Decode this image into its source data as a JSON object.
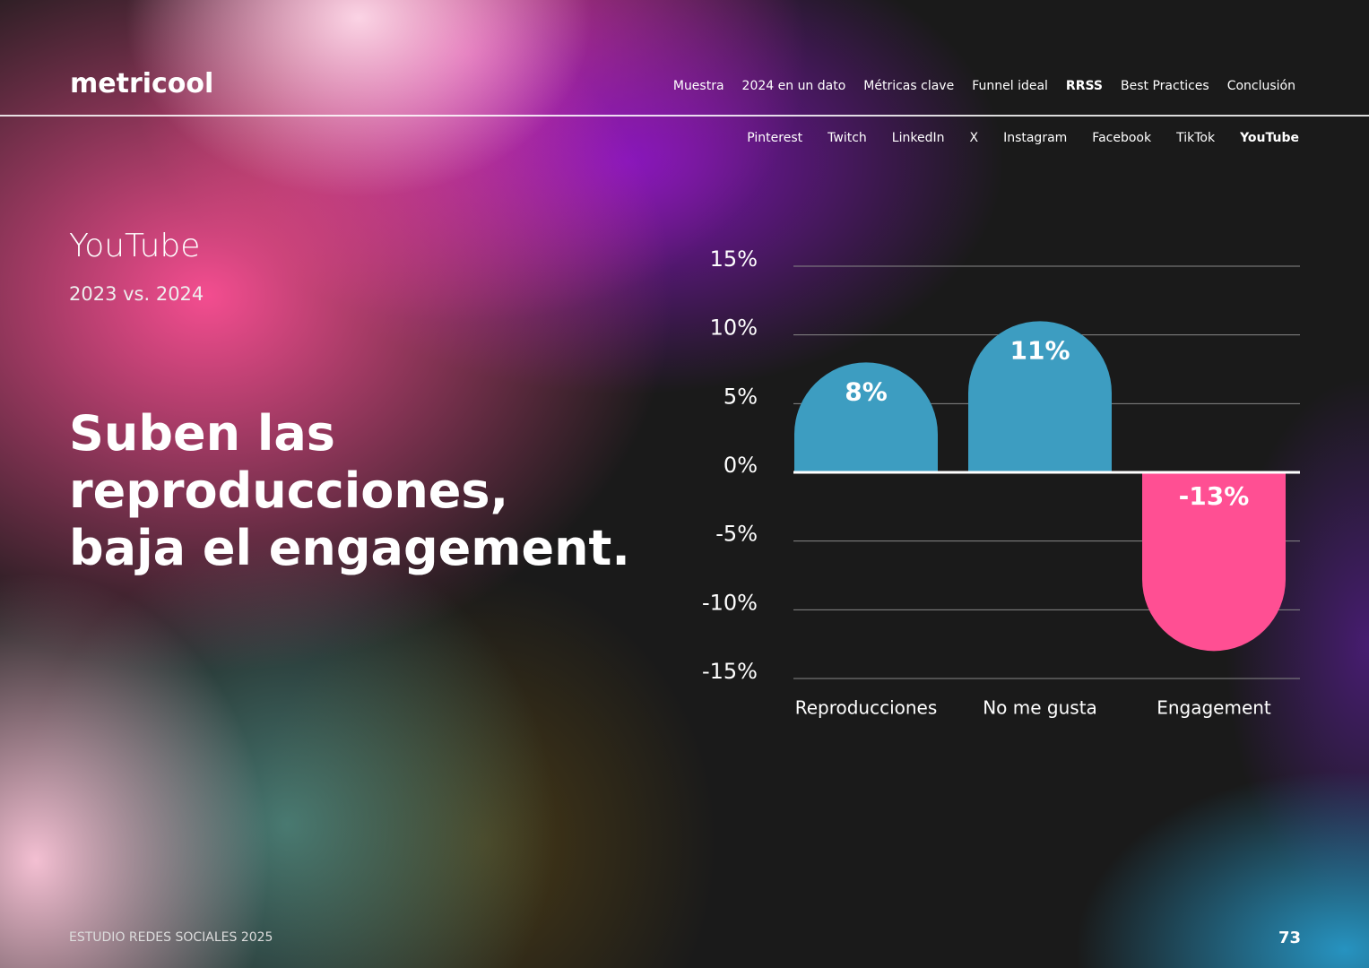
{
  "header": {
    "logo": "metricool",
    "nav": [
      "Muestra",
      "2024 en un dato",
      "Métricas clave",
      "Funnel ideal",
      "RRSS",
      "Best Practices",
      "Conclusión"
    ],
    "nav_active": 4,
    "subnav": [
      "Pinterest",
      "Twitch",
      "LinkedIn",
      "X",
      "Instagram",
      "Facebook",
      "TikTok",
      "YouTube"
    ],
    "subnav_active": 7
  },
  "section": {
    "title": "YouTube",
    "subtitle": "2023 vs. 2024",
    "headline": [
      "Suben las",
      "reproducciones,",
      "baja el engagement."
    ]
  },
  "chart_data": {
    "type": "bar",
    "categories": [
      "Reproducciones",
      "No me gusta",
      "Engagement"
    ],
    "values": [
      8,
      11,
      -13
    ],
    "value_labels": [
      "8%",
      "11%",
      "-13%"
    ],
    "colors": [
      "#3d9dc1",
      "#3d9dc1",
      "#ff4f93"
    ],
    "ylim": [
      -15,
      15
    ],
    "yticks": [
      {
        "value": 15,
        "label": "15%"
      },
      {
        "value": 10,
        "label": "10%"
      },
      {
        "value": 5,
        "label": "5%"
      },
      {
        "value": 0,
        "label": "0%"
      },
      {
        "value": -5,
        "label": "-5%"
      },
      {
        "value": -10,
        "label": "-10%"
      },
      {
        "value": -15,
        "label": "-15%"
      }
    ],
    "grid": true
  },
  "footer": {
    "text": "ESTUDIO REDES SOCIALES 2025",
    "page": "73"
  }
}
